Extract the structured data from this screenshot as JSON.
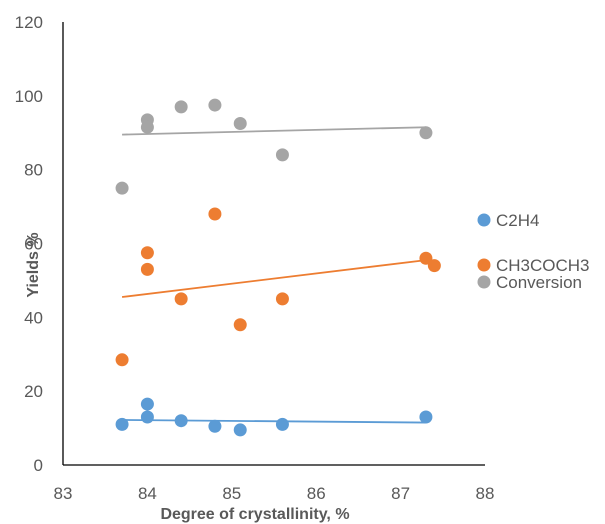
{
  "chart_data": {
    "type": "scatter",
    "xlabel": "Degree of crystallinity, %",
    "ylabel": "Yields %",
    "xlim": [
      83,
      88
    ],
    "ylim": [
      0,
      120
    ],
    "xticks": [
      83,
      84,
      85,
      86,
      87,
      88
    ],
    "yticks": [
      0,
      20,
      40,
      60,
      80,
      100,
      120
    ],
    "grid": false,
    "legend_position": "right",
    "series": [
      {
        "name": "C2H4",
        "color": "#5B9BD5",
        "points": [
          [
            83.7,
            11
          ],
          [
            84.0,
            16.5
          ],
          [
            84.0,
            13
          ],
          [
            84.4,
            12
          ],
          [
            84.8,
            10.5
          ],
          [
            85.1,
            9.5
          ],
          [
            85.6,
            11
          ],
          [
            87.3,
            13
          ]
        ],
        "trendline": [
          [
            83.7,
            12.2
          ],
          [
            87.3,
            11.5
          ]
        ]
      },
      {
        "name": "CH3COCH3",
        "color": "#ED7D31",
        "points": [
          [
            83.7,
            28.5
          ],
          [
            84.0,
            57.5
          ],
          [
            84.0,
            53
          ],
          [
            84.4,
            45
          ],
          [
            84.8,
            68
          ],
          [
            85.1,
            38
          ],
          [
            85.6,
            45
          ],
          [
            87.3,
            56
          ],
          [
            87.4,
            54
          ]
        ],
        "trendline": [
          [
            83.7,
            45.5
          ],
          [
            87.3,
            55.5
          ]
        ]
      },
      {
        "name": "Conversion",
        "color": "#A5A5A5",
        "points": [
          [
            83.7,
            75
          ],
          [
            84.0,
            93.5
          ],
          [
            84.0,
            91.5
          ],
          [
            84.4,
            97
          ],
          [
            84.8,
            97.5
          ],
          [
            85.1,
            92.5
          ],
          [
            85.6,
            84
          ],
          [
            87.3,
            90
          ]
        ],
        "trendline": [
          [
            83.7,
            89.5
          ],
          [
            87.3,
            91.5
          ]
        ]
      }
    ]
  }
}
